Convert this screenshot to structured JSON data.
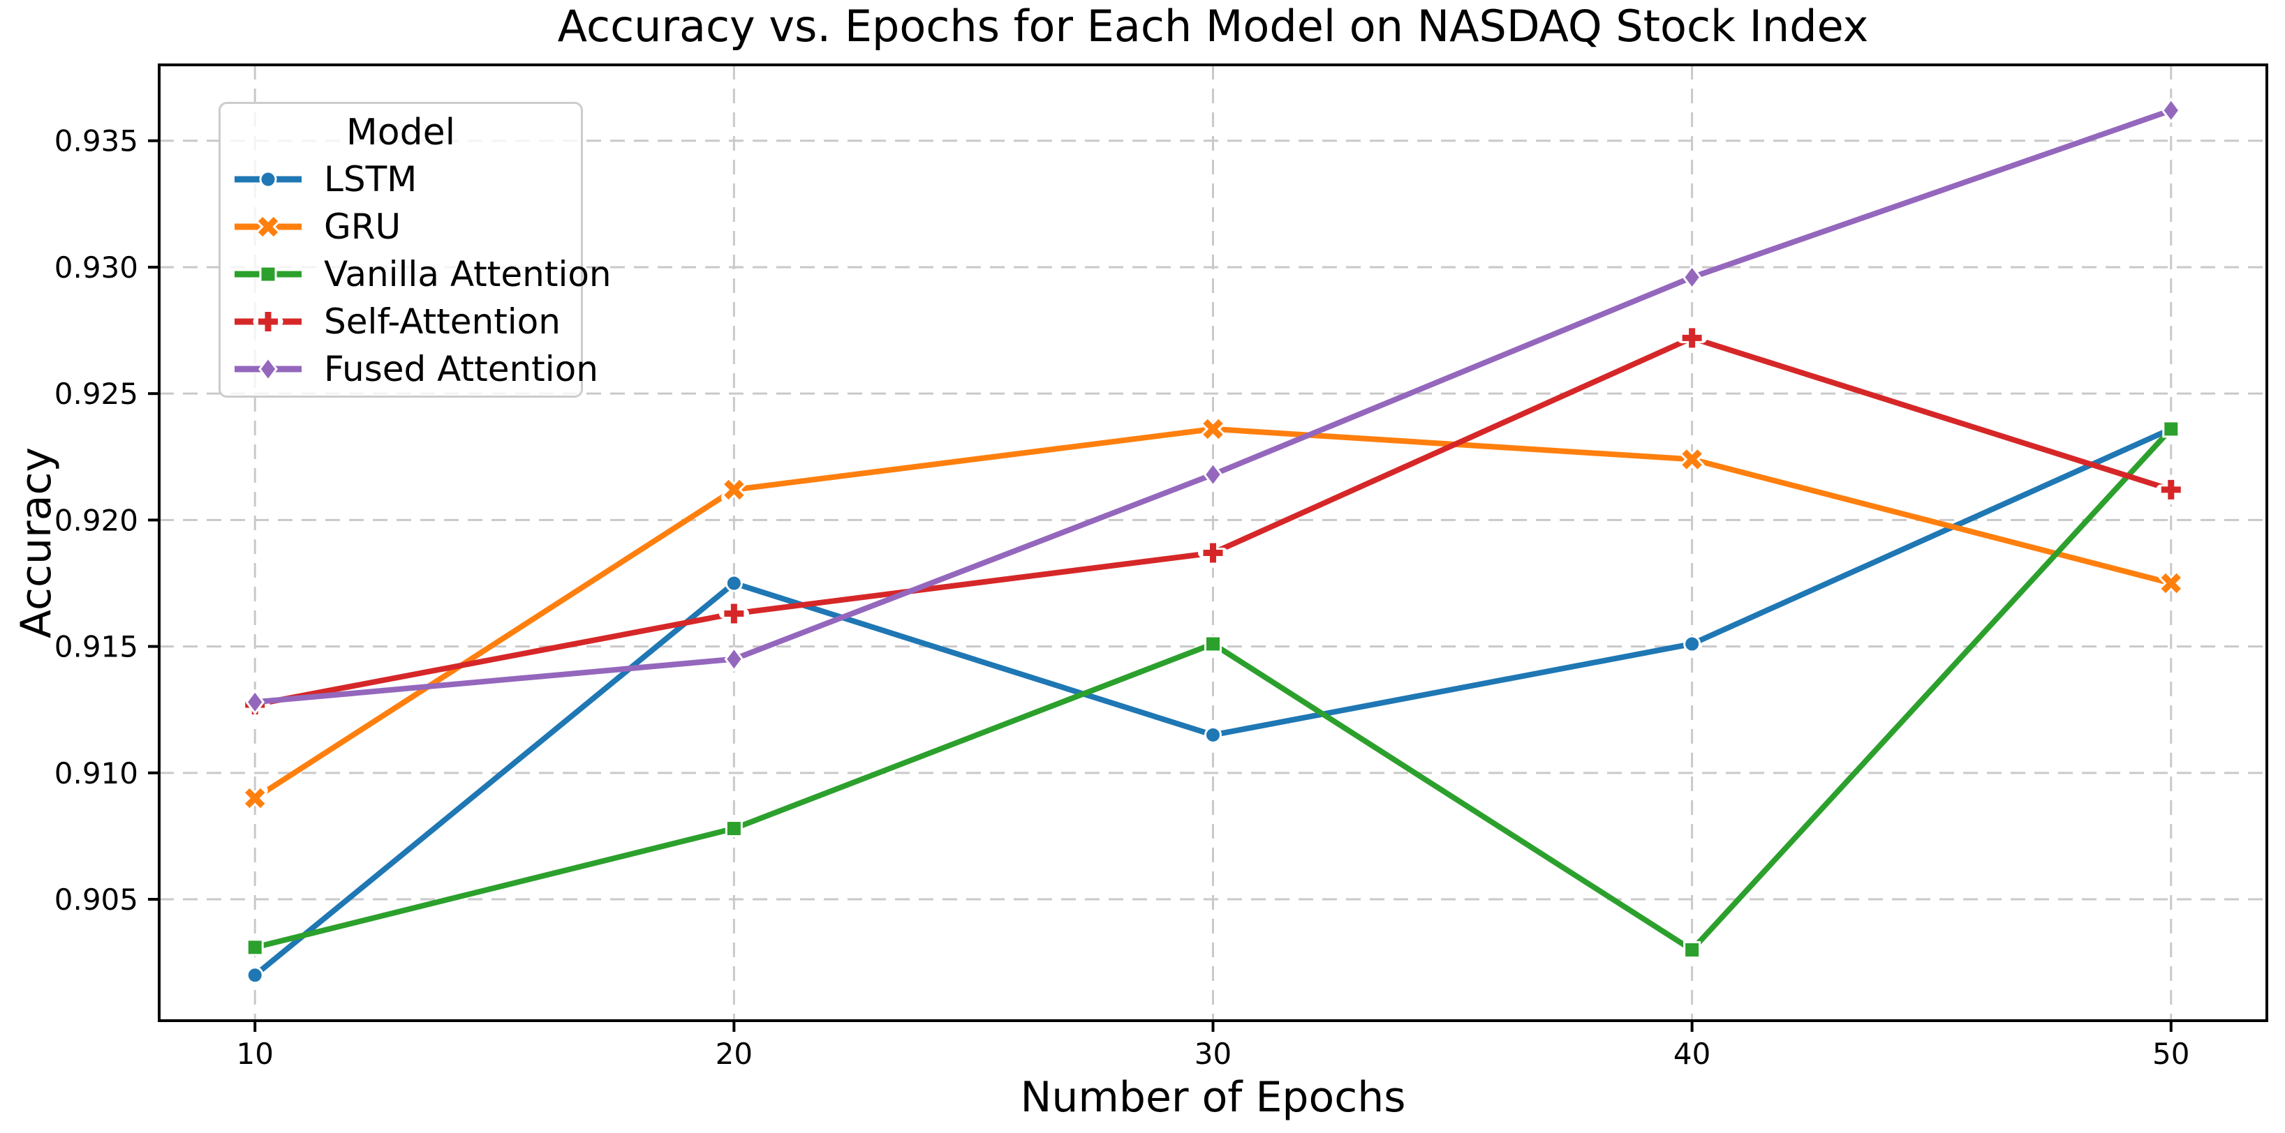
{
  "chart_data": {
    "type": "line",
    "title": "Accuracy vs. Epochs for Each Model on NASDAQ Stock Index",
    "xlabel": "Number of Epochs",
    "ylabel": "Accuracy",
    "x": [
      10,
      20,
      30,
      40,
      50
    ],
    "xticks": [
      10,
      20,
      30,
      40,
      50
    ],
    "yticks": [
      0.905,
      0.91,
      0.915,
      0.92,
      0.925,
      0.93,
      0.935
    ],
    "xlim": [
      8,
      52
    ],
    "ylim": [
      0.9002,
      0.938
    ],
    "grid": true,
    "grid_style": "dashed",
    "legend": {
      "title": "Model",
      "position": "upper left"
    },
    "series": [
      {
        "name": "LSTM",
        "color": "#1f77b4",
        "marker": "circle",
        "values": [
          0.902,
          0.9175,
          0.9115,
          0.9151,
          0.9236
        ]
      },
      {
        "name": "GRU",
        "color": "#ff7f0e",
        "marker": "x",
        "values": [
          0.909,
          0.9212,
          0.9236,
          0.9224,
          0.9175
        ]
      },
      {
        "name": "Vanilla Attention",
        "color": "#2ca02c",
        "marker": "square",
        "values": [
          0.9031,
          0.9078,
          0.9151,
          0.903,
          0.9236
        ]
      },
      {
        "name": "Self-Attention",
        "color": "#d62728",
        "marker": "plus",
        "values": [
          0.9127,
          0.9163,
          0.9187,
          0.9272,
          0.9212
        ]
      },
      {
        "name": "Fused Attention",
        "color": "#9467bd",
        "marker": "diamond",
        "values": [
          0.9128,
          0.9145,
          0.9218,
          0.9296,
          0.9362
        ]
      }
    ]
  }
}
